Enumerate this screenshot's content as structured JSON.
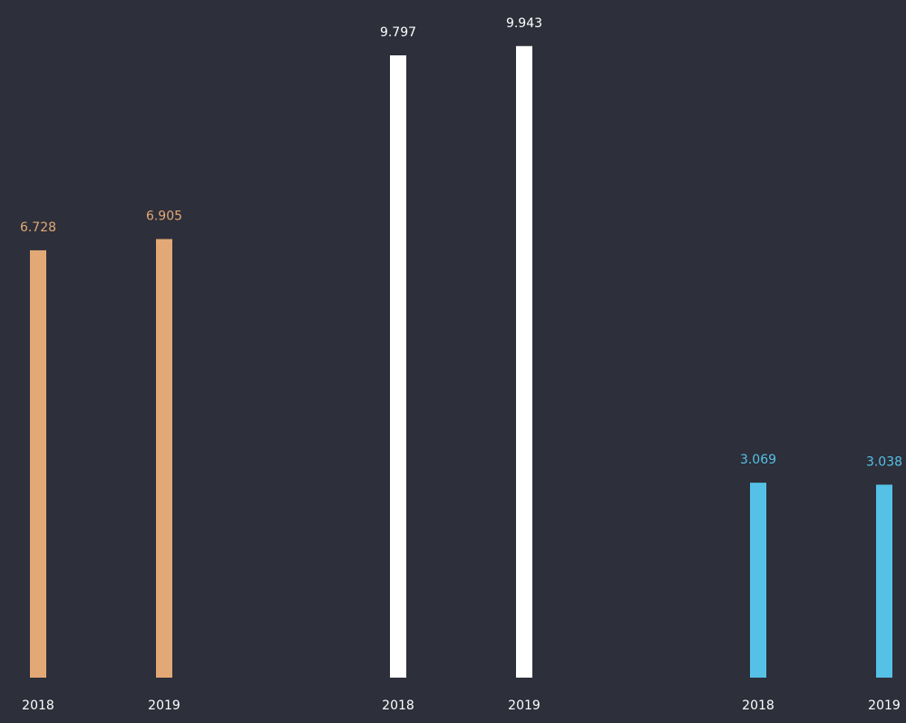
{
  "chart_data": {
    "type": "bar",
    "background": "#2d2f3a",
    "tick_color": "#ffffff",
    "groups": [
      {
        "color": "#e2a875",
        "categories": [
          "2018",
          "2019"
        ],
        "values": [
          6.728,
          6.905
        ],
        "value_labels": [
          "6.728",
          "6.905"
        ]
      },
      {
        "color": "#ffffff",
        "categories": [
          "2018",
          "2019"
        ],
        "values": [
          9.797,
          9.943
        ],
        "value_labels": [
          "9.797",
          "9.943"
        ]
      },
      {
        "color": "#55c1e7",
        "categories": [
          "2018",
          "2019"
        ],
        "values": [
          3.069,
          3.038
        ],
        "value_labels": [
          "3.069",
          "3.038"
        ]
      }
    ]
  }
}
